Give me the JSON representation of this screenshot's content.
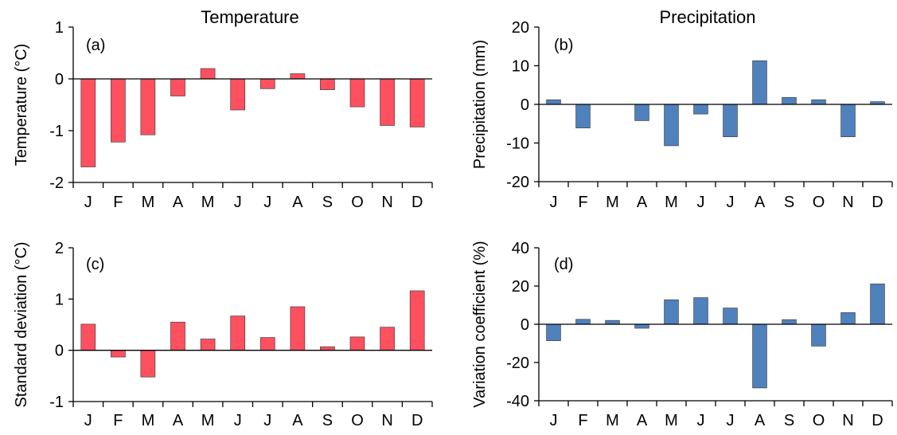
{
  "column_titles": {
    "left": "Temperature",
    "right": "Precipitation"
  },
  "colors": {
    "temperature_bar": "#FF5060",
    "precipitation_bar": "#4F81BD",
    "bar_edge": "#404040"
  },
  "chart_data": [
    {
      "type": "bar",
      "panel": "(a)",
      "ylabel": "Temperature (°C)",
      "categories": [
        "J",
        "F",
        "M",
        "A",
        "M",
        "J",
        "J",
        "A",
        "S",
        "O",
        "N",
        "D"
      ],
      "values": [
        -1.7,
        -1.22,
        -1.08,
        -0.33,
        0.2,
        -0.6,
        -0.19,
        0.1,
        -0.21,
        -0.54,
        -0.9,
        -0.93
      ],
      "ylim": [
        -2,
        1
      ],
      "yticks": [
        -2,
        -1,
        0,
        1
      ],
      "grid": false
    },
    {
      "type": "bar",
      "panel": "(b)",
      "ylabel": "Precipitation (mm)",
      "categories": [
        "J",
        "F",
        "M",
        "A",
        "M",
        "J",
        "J",
        "A",
        "S",
        "O",
        "N",
        "D"
      ],
      "values": [
        1.2,
        -6.1,
        0,
        -4.2,
        -10.7,
        -2.5,
        -8.4,
        11.3,
        1.8,
        1.2,
        -8.4,
        0.7
      ],
      "ylim": [
        -20,
        20
      ],
      "yticks": [
        -20,
        -10,
        0,
        10,
        20
      ],
      "grid": false
    },
    {
      "type": "bar",
      "panel": "(c)",
      "ylabel": "Standard deviation (°C)",
      "categories": [
        "J",
        "F",
        "M",
        "A",
        "M",
        "J",
        "J",
        "A",
        "S",
        "O",
        "N",
        "D"
      ],
      "values": [
        0.51,
        -0.13,
        -0.52,
        0.55,
        0.22,
        0.67,
        0.25,
        0.85,
        0.07,
        0.26,
        0.45,
        1.16
      ],
      "ylim": [
        -1,
        2
      ],
      "yticks": [
        -1,
        0,
        1,
        2
      ],
      "grid": false
    },
    {
      "type": "bar",
      "panel": "(d)",
      "ylabel": "Variation coefficient (%)",
      "categories": [
        "J",
        "F",
        "M",
        "A",
        "M",
        "J",
        "J",
        "A",
        "S",
        "O",
        "N",
        "D"
      ],
      "values": [
        -8.6,
        2.6,
        2.0,
        -2.1,
        12.8,
        13.9,
        8.5,
        -33.3,
        2.4,
        -11.4,
        6.1,
        21.1
      ],
      "ylim": [
        -40,
        40
      ],
      "yticks": [
        -40,
        -20,
        0,
        20,
        40
      ],
      "grid": false
    }
  ]
}
